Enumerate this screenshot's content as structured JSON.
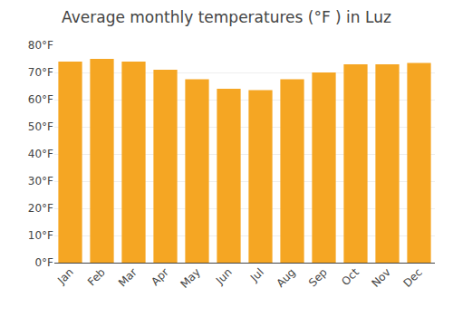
{
  "chart_data": {
    "type": "bar",
    "title": "Average monthly temperatures (°F ) in Luz",
    "categories": [
      "Jan",
      "Feb",
      "Mar",
      "Apr",
      "May",
      "Jun",
      "Jul",
      "Aug",
      "Sep",
      "Oct",
      "Nov",
      "Dec"
    ],
    "values": [
      74.0,
      75.0,
      74.0,
      71.0,
      67.5,
      64.0,
      63.5,
      67.5,
      70.0,
      73.0,
      73.0,
      73.5
    ],
    "color": "#F5A623",
    "ylim": [
      0,
      80
    ],
    "yticks": [
      {
        "value": 0,
        "label": "0°F"
      },
      {
        "value": 10,
        "label": "10°F"
      },
      {
        "value": 20,
        "label": "20°F"
      },
      {
        "value": 30,
        "label": "30°F"
      },
      {
        "value": 40,
        "label": "40°F"
      },
      {
        "value": 50,
        "label": "50°F"
      },
      {
        "value": 60,
        "label": "60°F"
      },
      {
        "value": 70,
        "label": "70°F"
      },
      {
        "value": 80,
        "label": "80°F"
      }
    ],
    "grid": true
  }
}
